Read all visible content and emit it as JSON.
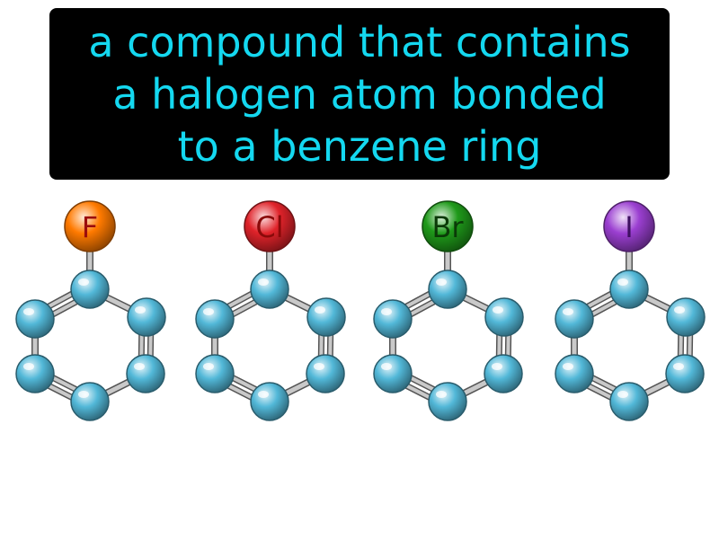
{
  "definition": {
    "lines": [
      "a compound that contains",
      "a halogen atom bonded",
      "to a benzene ring"
    ],
    "text_color": "#14d8f0",
    "background_color": "#000000"
  },
  "molecules": [
    {
      "symbol": "F",
      "atom_color": "#ff7a00",
      "label_color": "#9b0d0d"
    },
    {
      "symbol": "Cl",
      "atom_color": "#e0232a",
      "label_color": "#8a0a0a"
    },
    {
      "symbol": "Br",
      "atom_color": "#1f9a1a",
      "label_color": "#0b3a08"
    },
    {
      "symbol": "I",
      "atom_color": "#9b3fd1",
      "label_color": "#3e1060"
    }
  ],
  "ring_atom_color": "#52b8d8",
  "bond_color": "#8c8c8c"
}
